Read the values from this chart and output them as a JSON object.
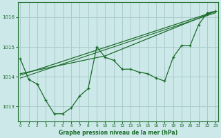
{
  "title": "Graphe pression niveau de la mer (hPa)",
  "bg_color": "#cce8e8",
  "grid_color": "#aacccc",
  "line_color": "#1a6b2a",
  "x_ticks": [
    0,
    1,
    2,
    3,
    4,
    5,
    6,
    7,
    8,
    9,
    10,
    11,
    12,
    13,
    14,
    15,
    16,
    17,
    18,
    19,
    20,
    21,
    22,
    23
  ],
  "xlim": [
    -0.3,
    23.3
  ],
  "ylim": [
    1012.5,
    1016.5
  ],
  "yticks": [
    1013,
    1014,
    1015,
    1016
  ],
  "zigzag": [
    1014.6,
    1013.9,
    1013.75,
    1013.2,
    1012.75,
    1012.75,
    1012.95,
    1013.35,
    1013.6,
    1015.0,
    1014.65,
    1014.55,
    1014.25,
    1014.25,
    1014.15,
    1014.1,
    1013.95,
    1013.85,
    1014.65,
    1015.05,
    1015.05,
    1015.75,
    1016.15,
    1016.2
  ],
  "trend1_x": [
    0,
    23
  ],
  "trend1_y": [
    1014.05,
    1016.2
  ],
  "trend2_x": [
    0,
    10,
    23
  ],
  "trend2_y": [
    1014.1,
    1014.7,
    1016.2
  ],
  "trend3_x": [
    0,
    23
  ],
  "trend3_y": [
    1013.95,
    1016.15
  ]
}
